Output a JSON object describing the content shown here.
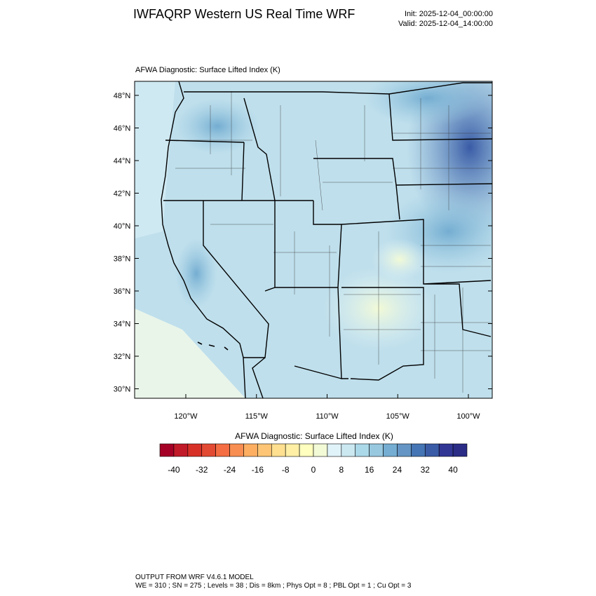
{
  "header": {
    "title": "IWFAQRP Western US Real Time WRF",
    "init": "Init: 2025-12-04_00:00:00",
    "valid": "Valid: 2025-12-04_14:00:00"
  },
  "map": {
    "title": "AFWA Diagnostic: Surface Lifted Index   (K)",
    "lat_labels": [
      "48°N",
      "46°N",
      "44°N",
      "42°N",
      "40°N",
      "38°N",
      "36°N",
      "34°N",
      "32°N",
      "30°N"
    ],
    "lon_labels": [
      "120°W",
      "115°W",
      "110°W",
      "105°W",
      "100°W"
    ]
  },
  "colorbar": {
    "title": "AFWA Diagnostic: Surface Lifted Index  (K)",
    "labels": [
      -40,
      -32,
      -24,
      -16,
      -8,
      0,
      8,
      16,
      24,
      32,
      40
    ],
    "colors": [
      "#a50026",
      "#c11b29",
      "#d73027",
      "#e34a33",
      "#f46d43",
      "#f88e52",
      "#fdae61",
      "#fdc575",
      "#fee090",
      "#feefa5",
      "#ffffbf",
      "#f2fad6",
      "#e0f3f8",
      "#cbe8f1",
      "#abd9e9",
      "#97c8e0",
      "#74add1",
      "#6495c4",
      "#4575b4",
      "#3a5ba6",
      "#313695",
      "#2a2c86"
    ]
  },
  "footer": {
    "line1": "OUTPUT FROM WRF V4.6.1 MODEL",
    "line2": "WE = 310 ; SN = 275 ; Levels = 38 ; Dis = 8km ; Phys Opt = 8 ; PBL Opt = 1 ; Cu Opt = 3"
  }
}
